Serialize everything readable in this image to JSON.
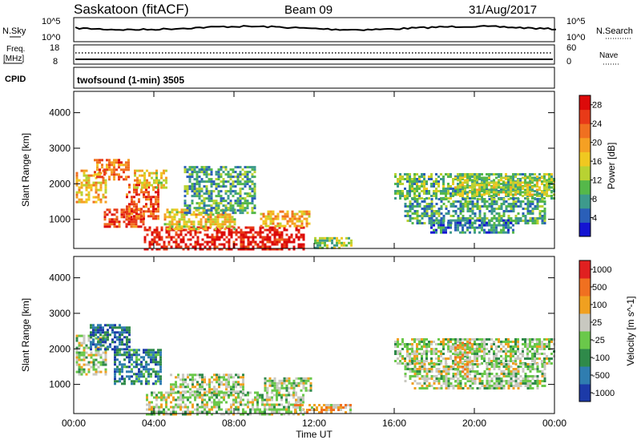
{
  "header": {
    "title": "Saskatoon (fitACF)",
    "beam": "Beam 09",
    "date": "31/Aug/2017"
  },
  "strip_labels": {
    "nsky": "N.Sky",
    "nsearch": "N.Search",
    "freq_line1": "Freq.",
    "freq_line2": "[MHz]",
    "nave": "Nave",
    "cpid": "CPID",
    "cpid_text": "twofsound (1-min) 3505"
  },
  "strip_ticks": {
    "noise_left": [
      "10^5",
      "10^0"
    ],
    "noise_right": [
      "10^5",
      "10^0"
    ],
    "freq_left": [
      "18",
      "8"
    ],
    "nave_right": [
      "60",
      "0"
    ]
  },
  "chart_data": [
    {
      "type": "heatmap",
      "name": "power-panel",
      "ylabel": "Slant Range [km]",
      "xlabel": "",
      "x_ticks": [
        "00:00",
        "04:00",
        "08:00",
        "12:00",
        "16:00",
        "20:00",
        "00:00"
      ],
      "y_ticks": [
        "1000",
        "2000",
        "3000",
        "4000"
      ],
      "ylim": [
        180,
        4600
      ],
      "xlim_hours": [
        0,
        24
      ],
      "colorbar": {
        "label": "Power [dB]",
        "ticks": [
          "4",
          "8",
          "12",
          "16",
          "20",
          "24",
          "28"
        ],
        "range": [
          0,
          30
        ],
        "colors": [
          "#1414d2",
          "#2a5fb8",
          "#3d9a8c",
          "#55b84a",
          "#b8d232",
          "#f0c820",
          "#f5a023",
          "#f07020",
          "#e83a18",
          "#dc0a0a"
        ]
      },
      "regions": [
        {
          "t0": 0.1,
          "t1": 1.6,
          "r0": 1500,
          "r1": 2400,
          "level": 0.6
        },
        {
          "t0": 1.0,
          "t1": 2.8,
          "r0": 2100,
          "r1": 2700,
          "level": 0.75
        },
        {
          "t0": 1.5,
          "t1": 3.5,
          "r0": 800,
          "r1": 1300,
          "level": 0.85
        },
        {
          "t0": 2.6,
          "t1": 4.2,
          "r0": 1000,
          "r1": 2000,
          "level": 0.8
        },
        {
          "t0": 3.0,
          "t1": 4.6,
          "r0": 1900,
          "r1": 2400,
          "level": 0.55
        },
        {
          "t0": 3.5,
          "t1": 11.5,
          "r0": 180,
          "r1": 800,
          "level": 0.95
        },
        {
          "t0": 4.5,
          "t1": 8.0,
          "r0": 700,
          "r1": 1300,
          "level": 0.55
        },
        {
          "t0": 5.5,
          "t1": 9.0,
          "r0": 1200,
          "r1": 2500,
          "level": 0.3
        },
        {
          "t0": 9.3,
          "t1": 11.8,
          "r0": 800,
          "r1": 1250,
          "level": 0.6
        },
        {
          "t0": 12.0,
          "t1": 13.9,
          "r0": 180,
          "r1": 500,
          "level": 0.4
        },
        {
          "t0": 16.0,
          "t1": 24.0,
          "r0": 1600,
          "r1": 2300,
          "level": 0.35
        },
        {
          "t0": 16.5,
          "t1": 23.5,
          "r0": 900,
          "r1": 1600,
          "level": 0.3
        },
        {
          "t0": 19.0,
          "t1": 24.0,
          "r0": 1700,
          "r1": 2200,
          "level": 0.45
        },
        {
          "t0": 17.8,
          "t1": 22.0,
          "r0": 600,
          "r1": 1000,
          "level": 0.2
        }
      ]
    },
    {
      "type": "heatmap",
      "name": "velocity-panel",
      "ylabel": "Slant Range [km]",
      "xlabel": "Time UT",
      "x_ticks": [
        "00:00",
        "04:00",
        "08:00",
        "12:00",
        "16:00",
        "20:00",
        "00:00"
      ],
      "y_ticks": [
        "1000",
        "2000",
        "3000",
        "4000"
      ],
      "ylim": [
        180,
        4600
      ],
      "xlim_hours": [
        0,
        24
      ],
      "colorbar": {
        "label": "Velocity [m s^-1]",
        "ticks": [
          "1000",
          "500",
          "100",
          "25",
          "-25",
          "-100",
          "-500",
          "-1000"
        ],
        "range": [
          -1200,
          1200
        ],
        "colors": [
          "#1c3aa8",
          "#2f7db0",
          "#2f8a4a",
          "#6ac84a",
          "#c8c8c0",
          "#f0a020",
          "#f07020",
          "#e02020"
        ]
      },
      "regions": [
        {
          "t0": 0.1,
          "t1": 1.6,
          "r0": 1300,
          "r1": 2400,
          "level": 0.5
        },
        {
          "t0": 0.8,
          "t1": 2.8,
          "r0": 2000,
          "r1": 2700,
          "level": 0.2
        },
        {
          "t0": 2.0,
          "t1": 4.4,
          "r0": 1000,
          "r1": 2000,
          "level": 0.25
        },
        {
          "t0": 3.6,
          "t1": 11.5,
          "r0": 180,
          "r1": 800,
          "level": 0.5
        },
        {
          "t0": 4.8,
          "t1": 8.5,
          "r0": 800,
          "r1": 1300,
          "level": 0.5
        },
        {
          "t0": 9.5,
          "t1": 11.8,
          "r0": 800,
          "r1": 1200,
          "level": 0.5
        },
        {
          "t0": 11.0,
          "t1": 13.8,
          "r0": 180,
          "r1": 450,
          "level": 0.65
        },
        {
          "t0": 16.0,
          "t1": 24.0,
          "r0": 1600,
          "r1": 2300,
          "level": 0.5
        },
        {
          "t0": 16.5,
          "t1": 23.5,
          "r0": 900,
          "r1": 1600,
          "level": 0.5
        },
        {
          "t0": 19.0,
          "t1": 19.8,
          "r0": 1100,
          "r1": 2200,
          "level": 0.62
        }
      ]
    }
  ]
}
